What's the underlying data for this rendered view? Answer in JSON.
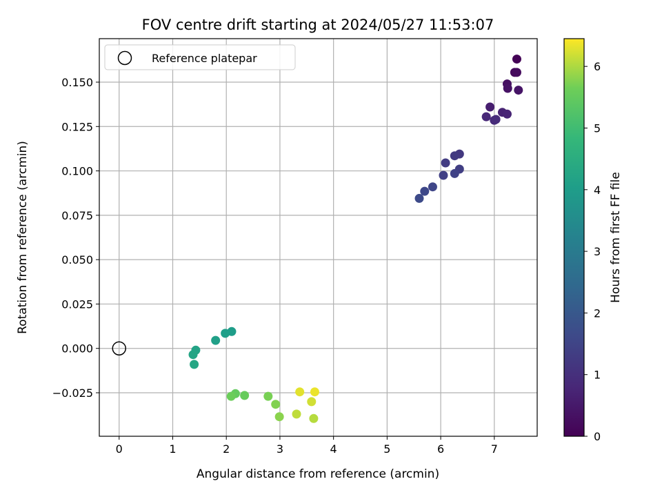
{
  "chart_data": {
    "type": "scatter",
    "title": "FOV centre drift starting at 2024/05/27 11:53:07",
    "xlabel": "Angular distance from reference (arcmin)",
    "ylabel": "Rotation from reference (arcmin)",
    "xlim": [
      -0.37,
      7.8
    ],
    "ylim": [
      -0.0495,
      0.1745
    ],
    "xticks": [
      0,
      1,
      2,
      3,
      4,
      5,
      6,
      7
    ],
    "xtick_labels": [
      "0",
      "1",
      "2",
      "3",
      "4",
      "5",
      "6",
      "7"
    ],
    "yticks": [
      -0.025,
      0.0,
      0.025,
      0.05,
      0.075,
      0.1,
      0.125,
      0.15
    ],
    "ytick_labels": [
      "−0.025",
      "0.000",
      "0.025",
      "0.050",
      "0.075",
      "0.100",
      "0.125",
      "0.150"
    ],
    "grid": true,
    "colormap": "viridis",
    "colorbar": {
      "label": "Hours from first FF file",
      "range": [
        0,
        6.45
      ],
      "ticks": [
        0,
        1,
        2,
        3,
        4,
        5,
        6
      ],
      "tick_labels": [
        "0",
        "1",
        "2",
        "3",
        "4",
        "5",
        "6"
      ]
    },
    "legend": {
      "placement": "top-left",
      "entries": [
        {
          "label": "Reference platepar",
          "marker": "hollow-circle"
        }
      ]
    },
    "reference_point": {
      "x": 0.0,
      "y": 0.0
    },
    "points": [
      {
        "x": 7.42,
        "y": 0.163,
        "c": 0.05
      },
      {
        "x": 7.38,
        "y": 0.1555,
        "c": 0.15
      },
      {
        "x": 7.42,
        "y": 0.1555,
        "c": 0.2
      },
      {
        "x": 7.24,
        "y": 0.149,
        "c": 0.3
      },
      {
        "x": 7.25,
        "y": 0.1465,
        "c": 0.35
      },
      {
        "x": 7.45,
        "y": 0.1455,
        "c": 0.4
      },
      {
        "x": 6.92,
        "y": 0.136,
        "c": 0.6
      },
      {
        "x": 7.15,
        "y": 0.133,
        "c": 0.7
      },
      {
        "x": 7.24,
        "y": 0.132,
        "c": 0.75
      },
      {
        "x": 6.85,
        "y": 0.1305,
        "c": 0.8
      },
      {
        "x": 7.0,
        "y": 0.1285,
        "c": 0.85
      },
      {
        "x": 7.03,
        "y": 0.129,
        "c": 0.9
      },
      {
        "x": 6.35,
        "y": 0.1095,
        "c": 1.2
      },
      {
        "x": 6.26,
        "y": 0.1085,
        "c": 1.25
      },
      {
        "x": 6.09,
        "y": 0.1045,
        "c": 1.3
      },
      {
        "x": 6.35,
        "y": 0.101,
        "c": 1.35
      },
      {
        "x": 6.05,
        "y": 0.0975,
        "c": 1.4
      },
      {
        "x": 6.26,
        "y": 0.0985,
        "c": 1.45
      },
      {
        "x": 5.85,
        "y": 0.091,
        "c": 1.55
      },
      {
        "x": 5.7,
        "y": 0.0885,
        "c": 1.6
      },
      {
        "x": 5.6,
        "y": 0.0845,
        "c": 1.65
      },
      {
        "x": 2.1,
        "y": 0.0095,
        "c": 4.0
      },
      {
        "x": 1.98,
        "y": 0.0085,
        "c": 4.05
      },
      {
        "x": 1.8,
        "y": 0.0045,
        "c": 4.1
      },
      {
        "x": 1.43,
        "y": -0.001,
        "c": 4.2
      },
      {
        "x": 1.38,
        "y": -0.0035,
        "c": 4.25
      },
      {
        "x": 1.4,
        "y": -0.009,
        "c": 4.3
      },
      {
        "x": 2.17,
        "y": -0.0255,
        "c": 5.5
      },
      {
        "x": 2.34,
        "y": -0.0265,
        "c": 5.55
      },
      {
        "x": 2.09,
        "y": -0.027,
        "c": 5.6
      },
      {
        "x": 2.78,
        "y": -0.027,
        "c": 5.7
      },
      {
        "x": 2.92,
        "y": -0.0315,
        "c": 5.75
      },
      {
        "x": 2.99,
        "y": -0.0385,
        "c": 5.8
      },
      {
        "x": 3.37,
        "y": -0.0245,
        "c": 6.3
      },
      {
        "x": 3.65,
        "y": -0.0245,
        "c": 6.35
      },
      {
        "x": 3.59,
        "y": -0.03,
        "c": 6.2
      },
      {
        "x": 3.31,
        "y": -0.037,
        "c": 6.1
      },
      {
        "x": 3.63,
        "y": -0.0395,
        "c": 6.05
      }
    ]
  }
}
